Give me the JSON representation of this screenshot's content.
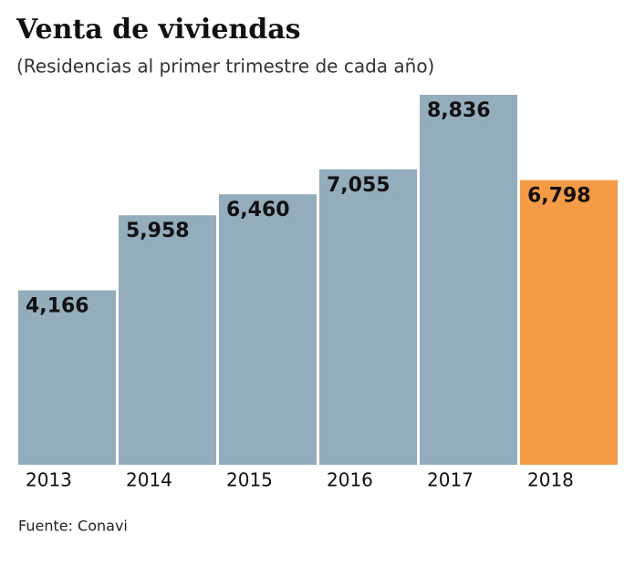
{
  "chart_data": {
    "type": "bar",
    "title": "Venta de viviendas",
    "subtitle": "(Residencias al primer trimestre de cada año)",
    "categories": [
      "2013",
      "2014",
      "2015",
      "2016",
      "2017",
      "2018"
    ],
    "values": [
      4166,
      5958,
      6460,
      7055,
      8836,
      6798
    ],
    "value_labels": [
      "4,166",
      "5,958",
      "6,460",
      "7,055",
      "8,836",
      "6,798"
    ],
    "colors": [
      "#94adbd",
      "#94adbd",
      "#94adbd",
      "#94adbd",
      "#94adbd",
      "#f59a45"
    ],
    "source": "Fuente: Conavi"
  }
}
